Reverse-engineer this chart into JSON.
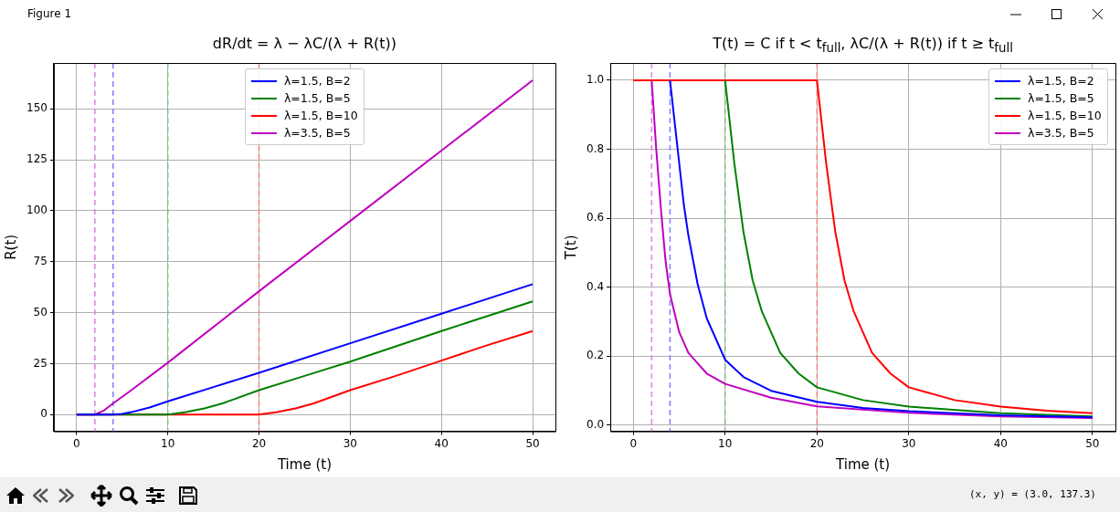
{
  "chart_data": [
    {
      "type": "line",
      "title": "dR/dt = λ − λC/(λ + R(t))",
      "xlabel": "Time (t)",
      "ylabel": "R(t)",
      "xlim": [
        -2.5,
        52.5
      ],
      "ylim": [
        -8.2,
        172.5
      ],
      "xticks": [
        0,
        10,
        20,
        30,
        40,
        50
      ],
      "yticks": [
        0,
        25,
        50,
        75,
        100,
        125,
        150
      ],
      "grid": true,
      "legend": "top",
      "annotations": [
        "Figure 1"
      ],
      "series": [
        {
          "name": "λ=1.5, B=2",
          "color": "#0000ff",
          "x": [
            0,
            4,
            5,
            6,
            8,
            10,
            15,
            20,
            30,
            40,
            50
          ],
          "values": [
            0,
            0,
            0.4,
            1.2,
            3.5,
            6.5,
            13.5,
            20.5,
            35,
            49.5,
            64
          ]
        },
        {
          "name": "λ=1.5, B=5",
          "color": "#008000",
          "x": [
            0,
            10,
            12,
            14,
            16,
            20,
            25,
            30,
            40,
            50
          ],
          "values": [
            0,
            0,
            1.2,
            3,
            5.5,
            12,
            19,
            26,
            41,
            55.5
          ]
        },
        {
          "name": "λ=1.5, B=10",
          "color": "#ff0000",
          "x": [
            0,
            20,
            22,
            24,
            26,
            30,
            35,
            40,
            45,
            50
          ],
          "values": [
            0,
            0,
            1.2,
            3,
            5.5,
            12,
            19,
            26.5,
            34,
            41
          ]
        },
        {
          "name": "λ=3.5, B=5",
          "color": "#bf00bf",
          "x": [
            0,
            2,
            3,
            4,
            6,
            10,
            20,
            30,
            40,
            50
          ],
          "values": [
            0,
            0,
            2,
            5.5,
            12,
            25.5,
            60.5,
            95,
            129.5,
            164
          ]
        }
      ],
      "ref_lines": [
        {
          "axis": "x",
          "value": 2,
          "color": "#df7fdf",
          "line_style": "dashed"
        },
        {
          "axis": "x",
          "value": 4,
          "color": "#7f7fff",
          "line_style": "dashed"
        },
        {
          "axis": "x",
          "value": 10,
          "color": "#7fbf7f",
          "line_style": "dashed"
        },
        {
          "axis": "x",
          "value": 20,
          "color": "#ff7f7f",
          "line_style": "dashed"
        }
      ]
    },
    {
      "type": "line",
      "title": "T(t) = C if t < t$_{full}$, λC/(λ + R(t)) if t ≥ t$_{full}$",
      "xlabel": "Time (t)",
      "ylabel": "T(t)",
      "xlim": [
        -2.5,
        52.5
      ],
      "ylim": [
        -0.0175,
        1.05
      ],
      "xticks": [
        0,
        10,
        20,
        30,
        40,
        50
      ],
      "yticks": [
        {
          "value": 0,
          "label": "0.0"
        },
        0.2,
        0.4,
        0.6,
        0.8,
        {
          "value": 1,
          "label": "1.0"
        }
      ],
      "grid": true,
      "legend": "top right",
      "annotations": [
        "(x, y) = (3.0, 137.3)"
      ],
      "series": [
        {
          "name": "λ=1.5, B=2",
          "color": "#0000ff",
          "x": [
            4,
            4.5,
            5,
            5.5,
            6,
            7,
            8,
            10,
            12,
            15,
            20,
            25,
            30,
            40,
            50
          ],
          "values": [
            1,
            0.88,
            0.76,
            0.64,
            0.55,
            0.41,
            0.31,
            0.19,
            0.14,
            0.1,
            0.068,
            0.05,
            0.041,
            0.029,
            0.023
          ]
        },
        {
          "name": "λ=1.5, B=5",
          "color": "#008000",
          "x": [
            10,
            11,
            12,
            13,
            14,
            16,
            18,
            20,
            25,
            30,
            40,
            50
          ],
          "values": [
            1,
            0.76,
            0.56,
            0.42,
            0.33,
            0.21,
            0.15,
            0.11,
            0.073,
            0.054,
            0.035,
            0.026
          ]
        },
        {
          "name": "λ=1.5, B=10",
          "color": "#ff0000",
          "x": [
            0,
            20,
            21,
            22,
            23,
            24,
            26,
            28,
            30,
            35,
            40,
            45,
            50
          ],
          "values": [
            1,
            1,
            0.76,
            0.56,
            0.42,
            0.33,
            0.21,
            0.15,
            0.11,
            0.073,
            0.054,
            0.042,
            0.035
          ]
        },
        {
          "name": "λ=3.5, B=5",
          "color": "#bf00bf",
          "x": [
            2,
            2.5,
            3,
            3.5,
            4,
            5,
            6,
            8,
            10,
            15,
            20,
            30,
            40,
            50
          ],
          "values": [
            1,
            0.8,
            0.63,
            0.48,
            0.38,
            0.27,
            0.21,
            0.15,
            0.12,
            0.08,
            0.055,
            0.036,
            0.026,
            0.021
          ]
        }
      ],
      "ref_lines": [
        {
          "axis": "x",
          "value": 2,
          "color": "#df7fdf",
          "line_style": "dashed"
        },
        {
          "axis": "x",
          "value": 4,
          "color": "#7f7fff",
          "line_style": "dashed"
        },
        {
          "axis": "x",
          "value": 10,
          "color": "#7fbf7f",
          "line_style": "dashed"
        },
        {
          "axis": "x",
          "value": 20,
          "color": "#ff7f7f",
          "line_style": "dashed"
        }
      ]
    }
  ]
}
